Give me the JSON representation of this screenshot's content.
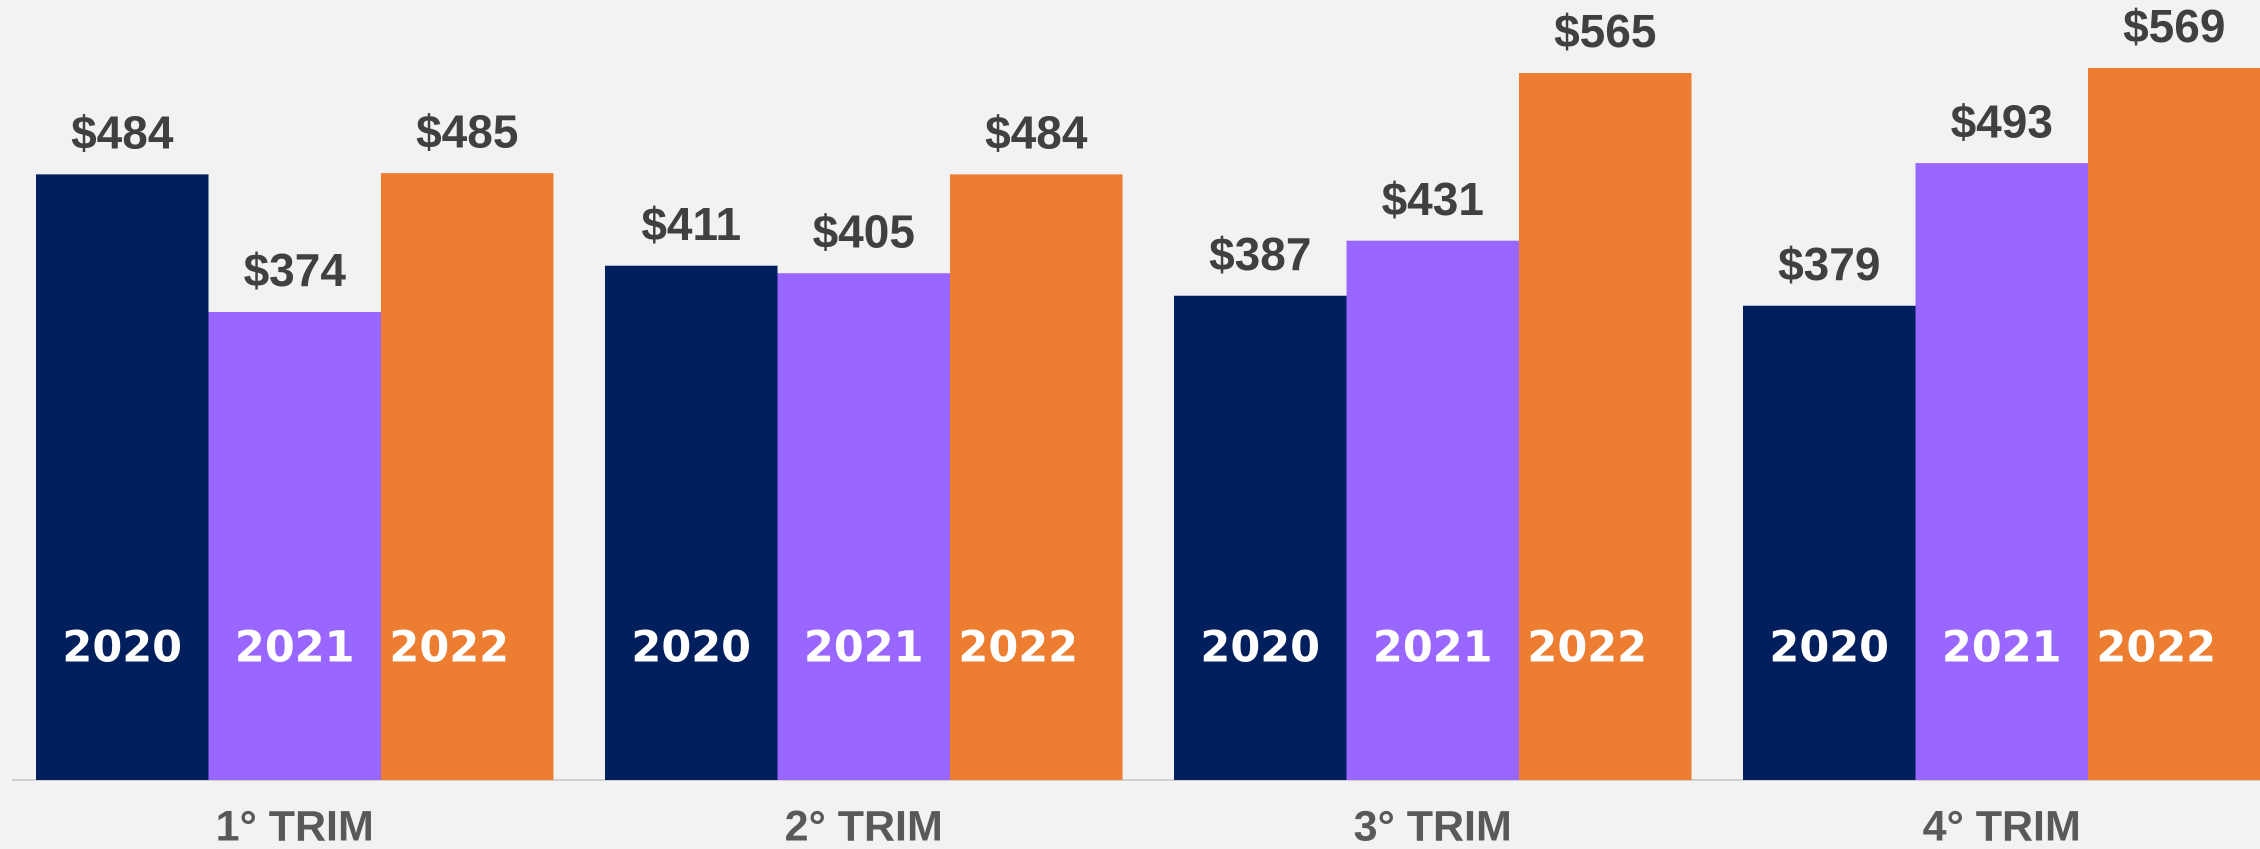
{
  "chart_data": {
    "type": "bar",
    "categories": [
      "1° TRIM",
      "2° TRIM",
      "3° TRIM",
      "4° TRIM"
    ],
    "series": [
      {
        "name": "2020",
        "color": "#001f5c",
        "values": [
          484,
          411,
          387,
          379
        ],
        "value_labels": [
          "$484",
          "$411",
          "$387",
          "$379"
        ]
      },
      {
        "name": "2021",
        "color": "#9966ff",
        "values": [
          374,
          405,
          431,
          493
        ],
        "value_labels": [
          "$374",
          "$405",
          "$431",
          "$493"
        ]
      },
      {
        "name": "2022",
        "color": "#ed7d31",
        "values": [
          485,
          484,
          565,
          569
        ],
        "value_labels": [
          "$485",
          "$484",
          "$565",
          "$569"
        ]
      }
    ]
  }
}
